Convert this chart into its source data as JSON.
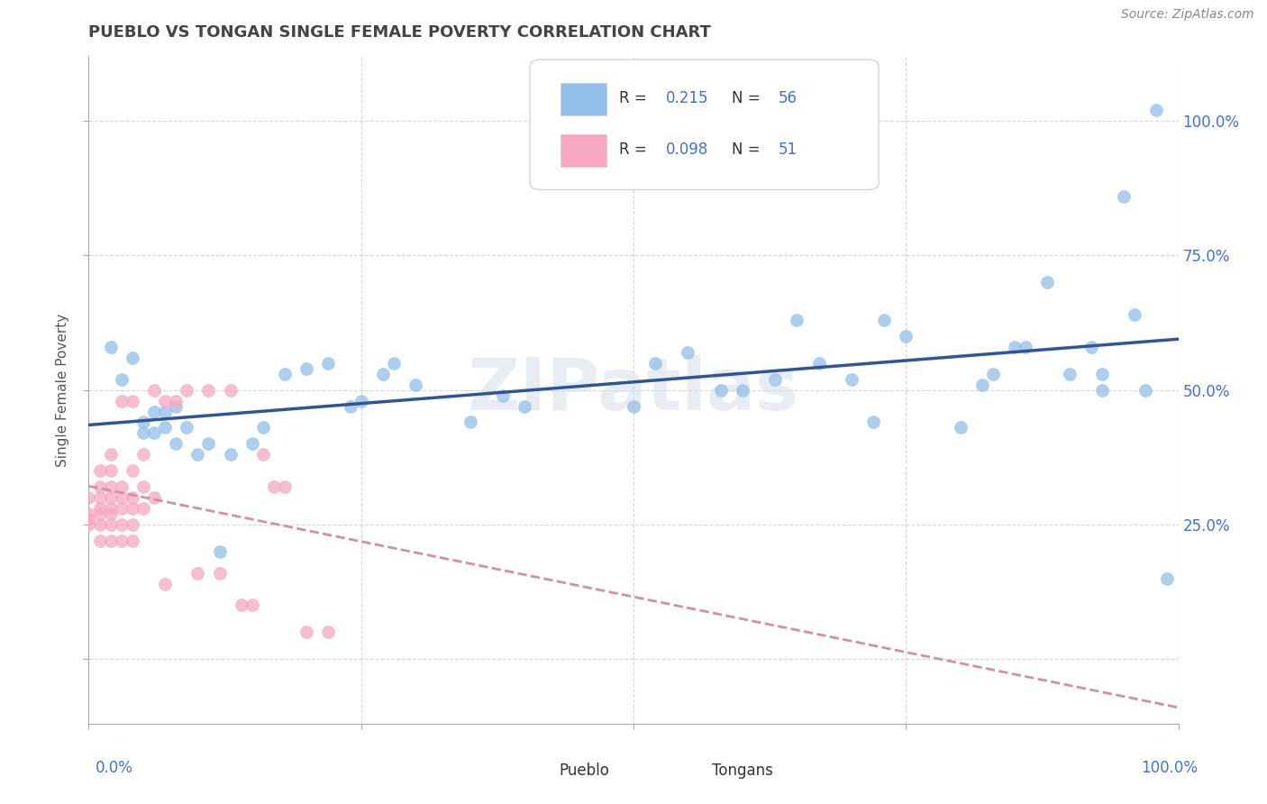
{
  "title": "PUEBLO VS TONGAN SINGLE FEMALE POVERTY CORRELATION CHART",
  "source": "Source: ZipAtlas.com",
  "ylabel": "Single Female Poverty",
  "pueblo_R": "0.215",
  "pueblo_N": "56",
  "tongan_R": "0.098",
  "tongan_N": "51",
  "pueblo_color": "#91c0ea",
  "tongan_color": "#f5a8c0",
  "pueblo_line_color": "#2f5597",
  "tongan_line_color": "#d48fa8",
  "watermark_text": "ZIPatlas",
  "background_color": "#ffffff",
  "grid_color": "#cccccc",
  "xlim": [
    0.0,
    1.0
  ],
  "ylim": [
    -0.12,
    1.12
  ],
  "yticks": [
    0.0,
    0.25,
    0.5,
    0.75,
    1.0
  ],
  "ytick_labels": [
    "",
    "25.0%",
    "50.0%",
    "75.0%",
    "100.0%"
  ],
  "pueblo_scatter": [
    [
      0.02,
      0.58
    ],
    [
      0.03,
      0.52
    ],
    [
      0.04,
      0.56
    ],
    [
      0.05,
      0.42
    ],
    [
      0.05,
      0.44
    ],
    [
      0.06,
      0.42
    ],
    [
      0.06,
      0.46
    ],
    [
      0.07,
      0.43
    ],
    [
      0.07,
      0.46
    ],
    [
      0.08,
      0.4
    ],
    [
      0.08,
      0.47
    ],
    [
      0.09,
      0.43
    ],
    [
      0.1,
      0.38
    ],
    [
      0.11,
      0.4
    ],
    [
      0.12,
      0.2
    ],
    [
      0.13,
      0.38
    ],
    [
      0.15,
      0.4
    ],
    [
      0.16,
      0.43
    ],
    [
      0.18,
      0.53
    ],
    [
      0.2,
      0.54
    ],
    [
      0.22,
      0.55
    ],
    [
      0.24,
      0.47
    ],
    [
      0.25,
      0.48
    ],
    [
      0.27,
      0.53
    ],
    [
      0.28,
      0.55
    ],
    [
      0.3,
      0.51
    ],
    [
      0.35,
      0.44
    ],
    [
      0.38,
      0.49
    ],
    [
      0.4,
      0.47
    ],
    [
      0.5,
      0.47
    ],
    [
      0.52,
      0.55
    ],
    [
      0.55,
      0.57
    ],
    [
      0.58,
      0.5
    ],
    [
      0.6,
      0.5
    ],
    [
      0.63,
      0.52
    ],
    [
      0.65,
      0.63
    ],
    [
      0.67,
      0.55
    ],
    [
      0.7,
      0.52
    ],
    [
      0.72,
      0.44
    ],
    [
      0.73,
      0.63
    ],
    [
      0.75,
      0.6
    ],
    [
      0.8,
      0.43
    ],
    [
      0.82,
      0.51
    ],
    [
      0.83,
      0.53
    ],
    [
      0.85,
      0.58
    ],
    [
      0.86,
      0.58
    ],
    [
      0.88,
      0.7
    ],
    [
      0.9,
      0.53
    ],
    [
      0.92,
      0.58
    ],
    [
      0.93,
      0.53
    ],
    [
      0.95,
      0.86
    ],
    [
      0.96,
      0.64
    ],
    [
      0.98,
      1.02
    ],
    [
      0.99,
      0.15
    ],
    [
      0.93,
      0.5
    ],
    [
      0.97,
      0.5
    ]
  ],
  "tongan_scatter": [
    [
      0.0,
      0.25
    ],
    [
      0.0,
      0.26
    ],
    [
      0.0,
      0.27
    ],
    [
      0.0,
      0.3
    ],
    [
      0.01,
      0.22
    ],
    [
      0.01,
      0.25
    ],
    [
      0.01,
      0.27
    ],
    [
      0.01,
      0.28
    ],
    [
      0.01,
      0.3
    ],
    [
      0.01,
      0.32
    ],
    [
      0.01,
      0.35
    ],
    [
      0.02,
      0.22
    ],
    [
      0.02,
      0.25
    ],
    [
      0.02,
      0.27
    ],
    [
      0.02,
      0.28
    ],
    [
      0.02,
      0.3
    ],
    [
      0.02,
      0.32
    ],
    [
      0.02,
      0.35
    ],
    [
      0.02,
      0.38
    ],
    [
      0.03,
      0.22
    ],
    [
      0.03,
      0.25
    ],
    [
      0.03,
      0.28
    ],
    [
      0.03,
      0.3
    ],
    [
      0.03,
      0.32
    ],
    [
      0.03,
      0.48
    ],
    [
      0.04,
      0.22
    ],
    [
      0.04,
      0.25
    ],
    [
      0.04,
      0.28
    ],
    [
      0.04,
      0.3
    ],
    [
      0.04,
      0.35
    ],
    [
      0.04,
      0.48
    ],
    [
      0.05,
      0.28
    ],
    [
      0.05,
      0.32
    ],
    [
      0.05,
      0.38
    ],
    [
      0.06,
      0.3
    ],
    [
      0.06,
      0.5
    ],
    [
      0.07,
      0.14
    ],
    [
      0.07,
      0.48
    ],
    [
      0.08,
      0.48
    ],
    [
      0.09,
      0.5
    ],
    [
      0.1,
      0.16
    ],
    [
      0.11,
      0.5
    ],
    [
      0.12,
      0.16
    ],
    [
      0.13,
      0.5
    ],
    [
      0.14,
      0.1
    ],
    [
      0.15,
      0.1
    ],
    [
      0.16,
      0.38
    ],
    [
      0.17,
      0.32
    ],
    [
      0.18,
      0.32
    ],
    [
      0.2,
      0.05
    ],
    [
      0.22,
      0.05
    ]
  ]
}
